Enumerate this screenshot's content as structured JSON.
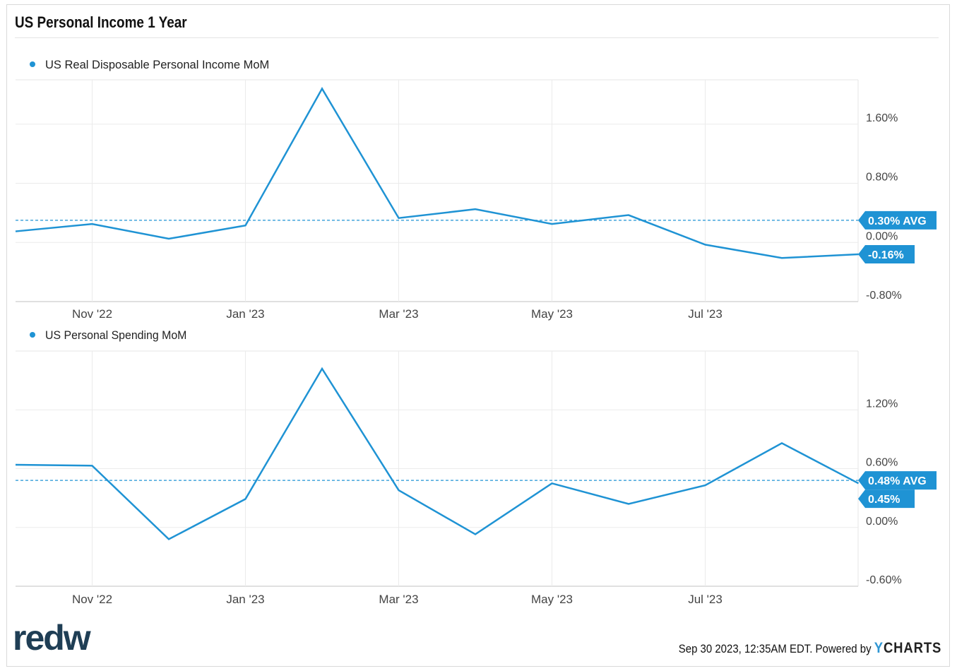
{
  "title": "US Personal Income 1 Year",
  "footer": {
    "date_text": "Sep 30 2023, 12:35AM EDT. Powered by ",
    "brand_y": "Y",
    "brand_rest": "CHARTS"
  },
  "logo_text": "redw",
  "colors": {
    "series": "#1f93d4",
    "grid": "#ebebeb",
    "axis_text": "#444444"
  },
  "chart_data": [
    {
      "type": "line",
      "legend": "US Real Disposable Personal Income MoM",
      "x": [
        "2022-09",
        "2022-10",
        "2022-11",
        "2022-12",
        "2023-01",
        "2023-02",
        "2023-03",
        "2023-04",
        "2023-05",
        "2023-06",
        "2023-07",
        "2023-08"
      ],
      "values": [
        0.15,
        0.25,
        0.05,
        0.23,
        2.08,
        0.33,
        0.45,
        0.25,
        0.37,
        -0.03,
        -0.21,
        -0.16
      ],
      "ylim": [
        -0.8,
        2.2
      ],
      "yticks": [
        1.6,
        0.8,
        0.0,
        -0.8
      ],
      "ytick_labels": [
        "1.60%",
        "0.80%",
        "0.00%",
        "-0.80%"
      ],
      "xtick_labels": [
        "Nov '22",
        "Jan '23",
        "Mar '23",
        "May '23",
        "Jul '23"
      ],
      "xtick_positions": [
        "2022-10",
        "2022-12",
        "2023-02",
        "2023-04",
        "2023-06"
      ],
      "avg": 0.3,
      "avg_label": "0.30% AVG",
      "last_label": "-0.16%",
      "grid": true
    },
    {
      "type": "line",
      "legend": "US Personal Spending MoM",
      "x": [
        "2022-09",
        "2022-10",
        "2022-11",
        "2022-12",
        "2023-01",
        "2023-02",
        "2023-03",
        "2023-04",
        "2023-05",
        "2023-06",
        "2023-07",
        "2023-08"
      ],
      "values": [
        0.64,
        0.63,
        -0.12,
        0.29,
        1.62,
        0.38,
        -0.07,
        0.45,
        0.24,
        0.43,
        0.86,
        0.45
      ],
      "ylim": [
        -0.6,
        1.8
      ],
      "yticks": [
        1.2,
        0.6,
        0.0,
        -0.6
      ],
      "ytick_labels": [
        "1.20%",
        "0.60%",
        "0.00%",
        "-0.60%"
      ],
      "xtick_labels": [
        "Nov '22",
        "Jan '23",
        "Mar '23",
        "May '23",
        "Jul '23"
      ],
      "xtick_positions": [
        "2022-10",
        "2022-12",
        "2023-02",
        "2023-04",
        "2023-06"
      ],
      "avg": 0.48,
      "avg_label": "0.48% AVG",
      "last_label": "0.45%",
      "grid": true
    }
  ]
}
